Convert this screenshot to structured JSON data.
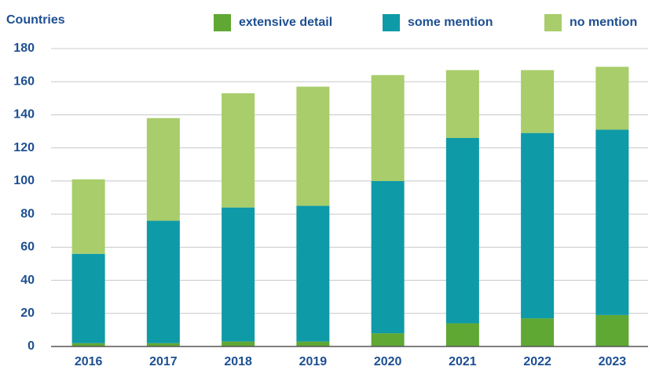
{
  "chart_data": {
    "type": "stacked_bar",
    "y_label": "Countries",
    "categories": [
      "2016",
      "2017",
      "2018",
      "2019",
      "2020",
      "2021",
      "2022",
      "2023"
    ],
    "series": [
      {
        "name": "extensive detail",
        "color": "#5fa833",
        "values": [
          2,
          2,
          3,
          3,
          8,
          14,
          17,
          19
        ]
      },
      {
        "name": "some mention",
        "color": "#0f9aa8",
        "values": [
          54,
          74,
          81,
          82,
          92,
          112,
          112,
          112
        ]
      },
      {
        "name": "no mention",
        "color": "#a8cd6a",
        "values": [
          45,
          62,
          69,
          72,
          64,
          41,
          38,
          38
        ]
      }
    ],
    "ylim": [
      0,
      180
    ],
    "yticks": [
      0,
      20,
      40,
      60,
      80,
      100,
      120,
      140,
      160,
      180
    ],
    "grid": true
  }
}
